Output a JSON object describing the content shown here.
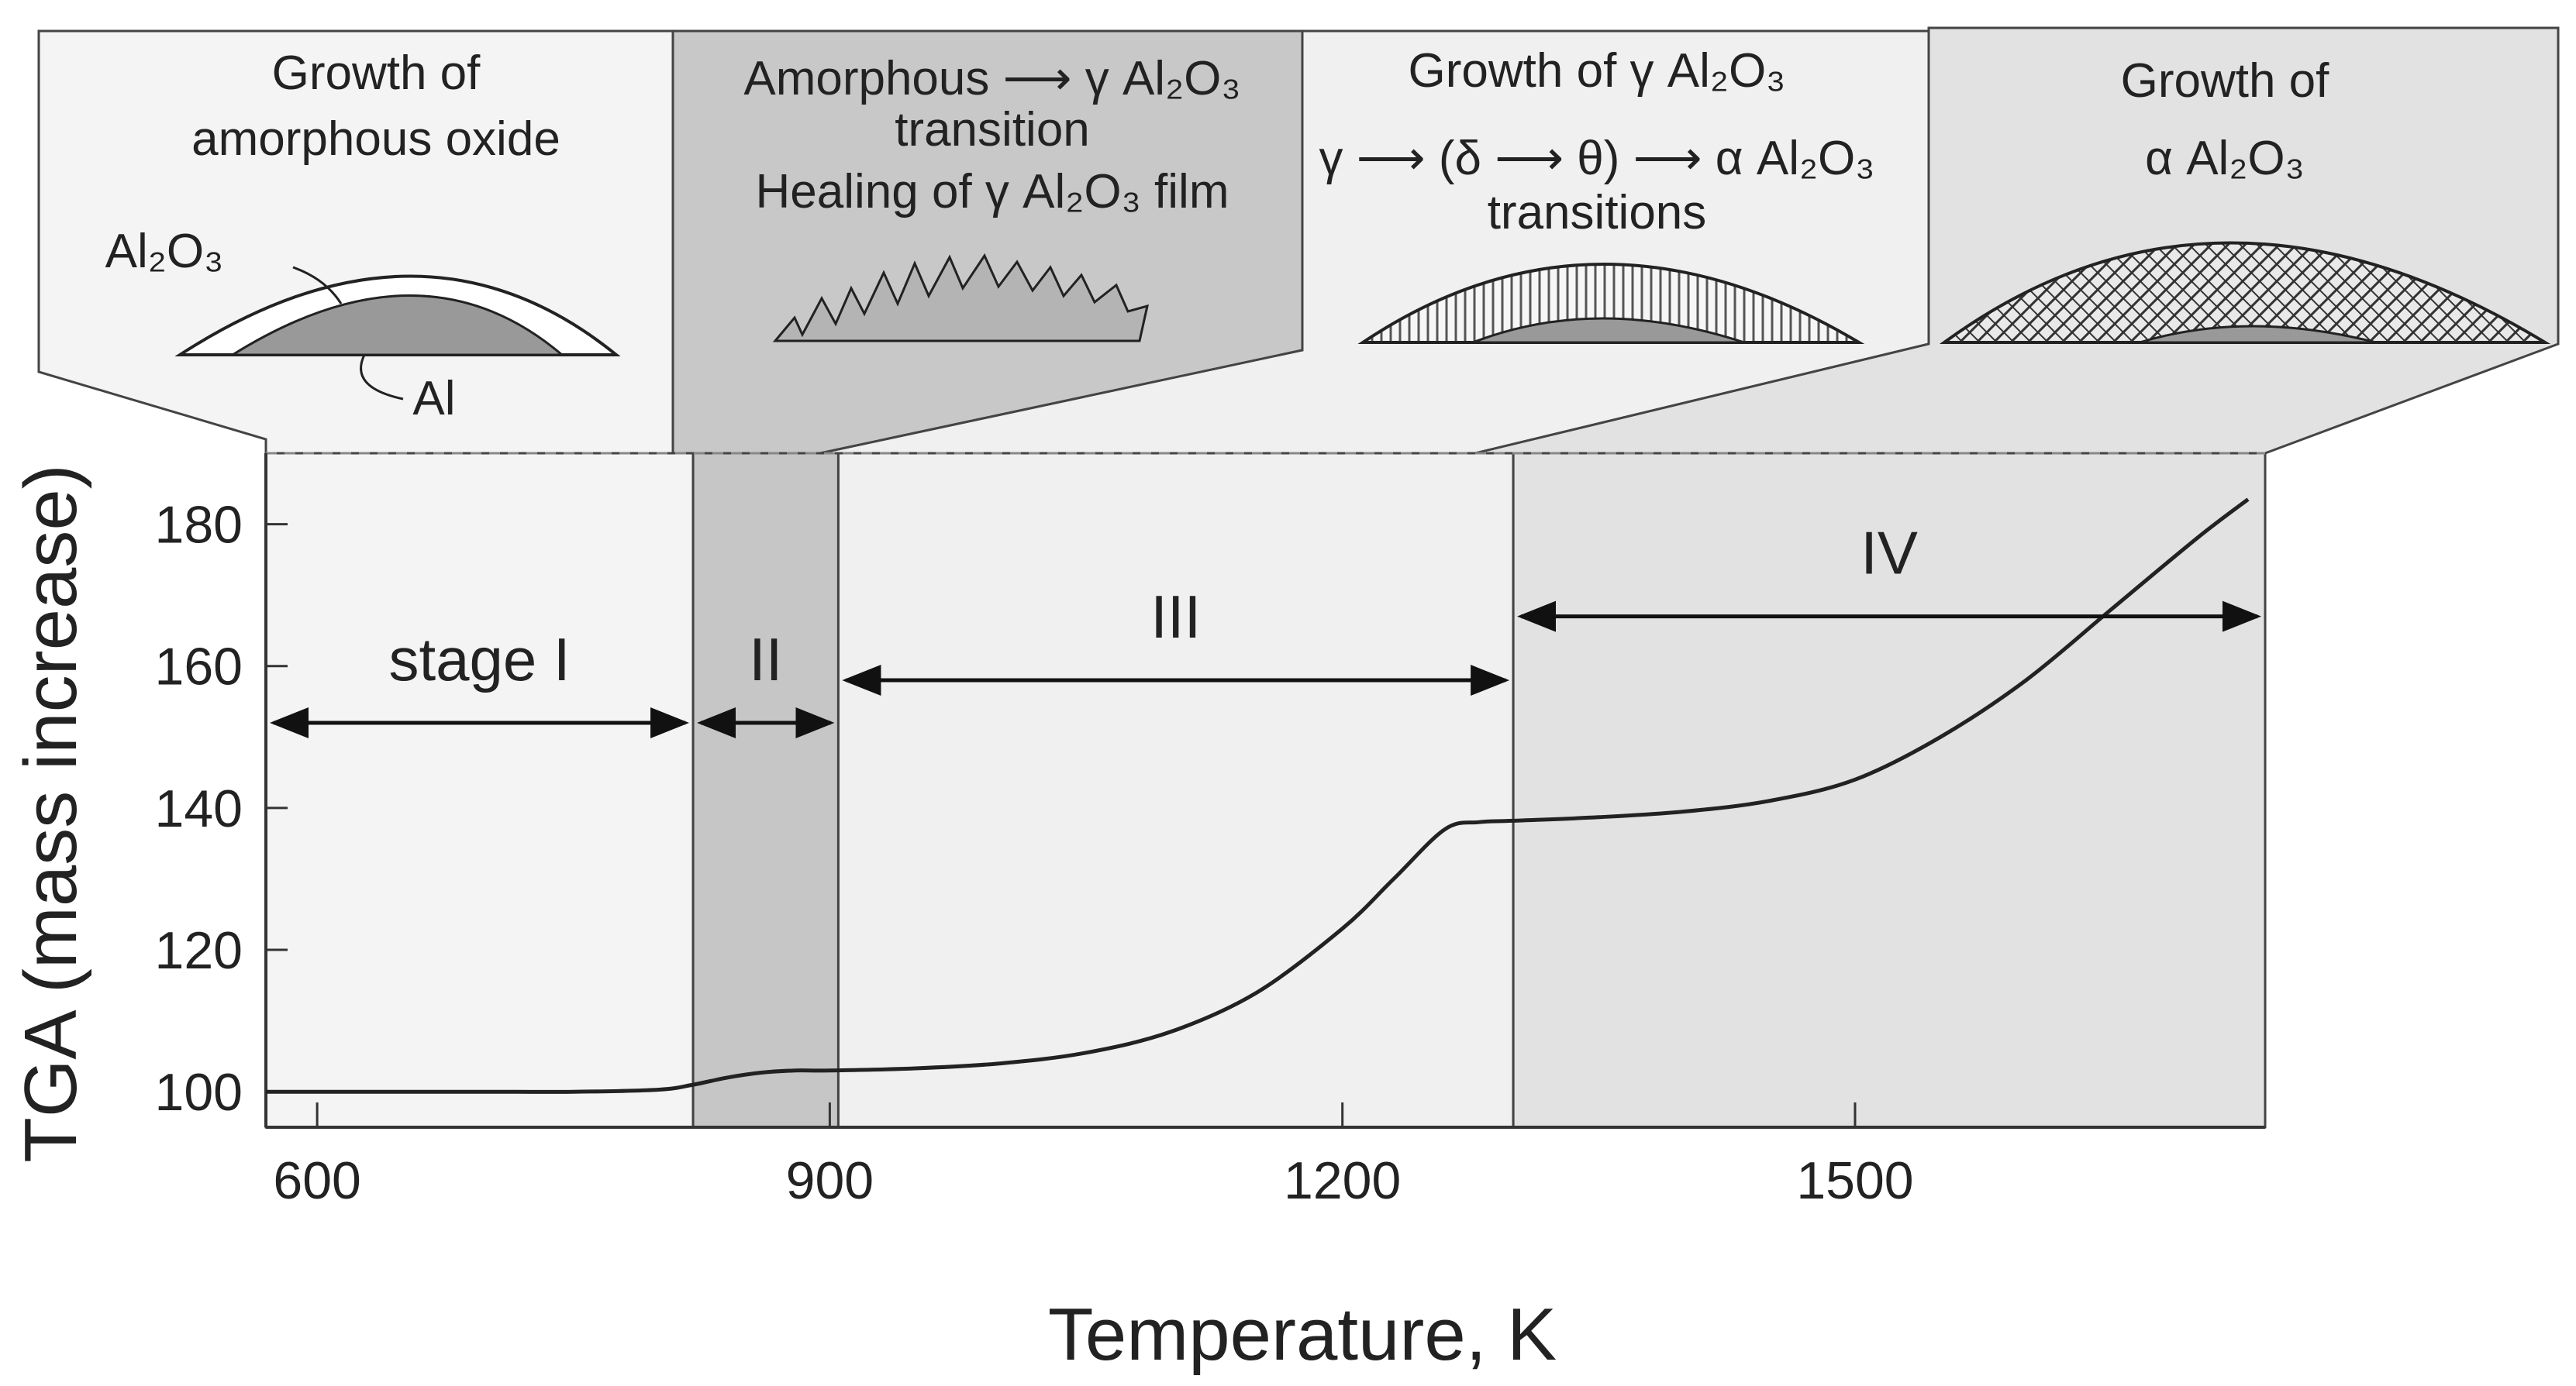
{
  "chart_data": {
    "type": "line",
    "title": "",
    "xlabel": "Temperature, K",
    "ylabel": "TGA (mass increase)",
    "xlim": [
      570,
      1740
    ],
    "ylim": [
      95,
      190
    ],
    "x_ticks": [
      600,
      900,
      1200,
      1500
    ],
    "y_ticks": [
      100,
      120,
      140,
      160,
      180
    ],
    "dashed_reference_y": 190,
    "grid": false,
    "colors": {
      "stage_I": "#f4f4f4",
      "stage_II": "#c6c6c6",
      "stage_III": "#f0f0f0",
      "stage_IV": "#e2e2e2",
      "curve": "#222222"
    },
    "series": [
      {
        "x": [
          570,
          600,
          650,
          700,
          750,
          800,
          820,
          840,
          860,
          880,
          900,
          950,
          1000,
          1050,
          1100,
          1150,
          1200,
          1230,
          1260,
          1280,
          1300,
          1350,
          1400,
          1450,
          1500,
          1550,
          1600,
          1650,
          1700,
          1730
        ],
        "values": [
          100,
          100,
          100,
          100,
          100,
          100.3,
          101,
          102,
          102.7,
          103,
          103,
          103.3,
          104,
          105.5,
          108.5,
          114,
          123,
          130,
          137,
          138,
          138.2,
          138.7,
          139.5,
          141,
          144,
          150,
          158,
          168,
          178,
          183.5
        ]
      }
    ],
    "stages": [
      {
        "label": "stage I",
        "x_start": 570,
        "x_end": 820,
        "header": [
          "Growth of",
          "amorphous oxide"
        ],
        "oxide_label": "Al₂O₃",
        "metal_label": "Al"
      },
      {
        "label": "II",
        "x_start": 820,
        "x_end": 905,
        "header": [
          "Amorphous ⟶ γ Al₂O₃",
          "transition",
          "Healing of γ Al₂O₃ film"
        ]
      },
      {
        "label": "III",
        "x_start": 905,
        "x_end": 1300,
        "header": [
          "Growth of  γ Al₂O₃",
          "γ ⟶ (δ ⟶ θ) ⟶ α Al₂O₃",
          "transitions"
        ]
      },
      {
        "label": "IV",
        "x_start": 1300,
        "x_end": 1740,
        "header": [
          "Growth of",
          "α Al₂O₃"
        ]
      }
    ]
  }
}
